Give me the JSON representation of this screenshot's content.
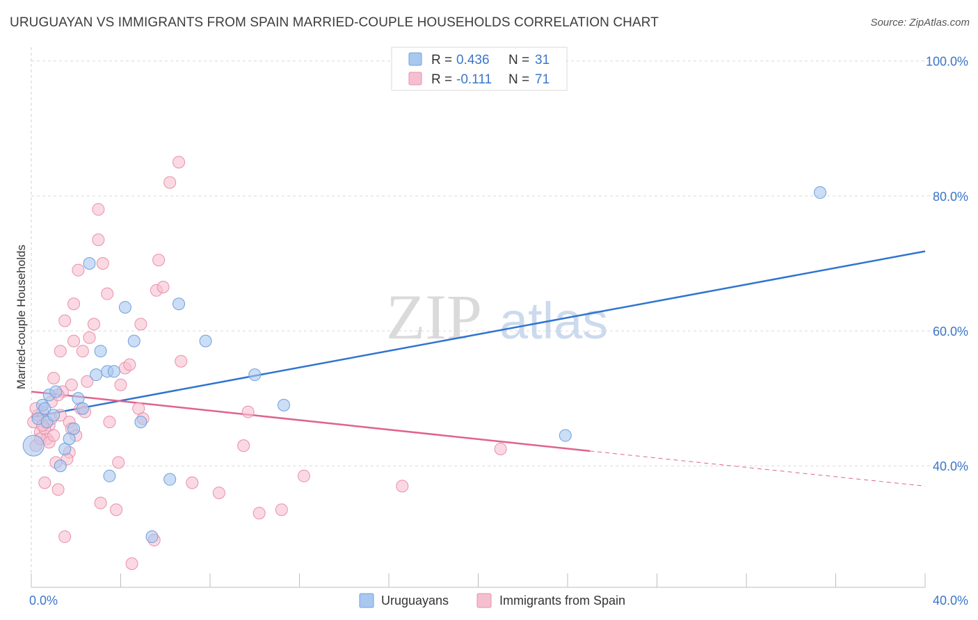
{
  "title": "URUGUAYAN VS IMMIGRANTS FROM SPAIN MARRIED-COUPLE HOUSEHOLDS CORRELATION CHART",
  "source": "Source: ZipAtlas.com",
  "watermark": {
    "zip": "ZIP",
    "atlas": "atlas"
  },
  "colors": {
    "blue_fill": "#a9c8ef",
    "blue_stroke": "#6f9fdc",
    "blue_line": "#2f74d0",
    "pink_fill": "#f6bfd0",
    "pink_stroke": "#e88fab",
    "pink_line": "#e0628f",
    "axis_label": "#3a76c9",
    "grid": "#d9d9d9"
  },
  "legend": {
    "rows": [
      {
        "r_label": "R =",
        "r_value": "0.436",
        "n_label": "N =",
        "n_value": "31"
      },
      {
        "r_label": "R =",
        "r_value": "-0.111",
        "n_label": "N =",
        "n_value": "71"
      }
    ]
  },
  "bottom_legend": [
    "Uruguayans",
    "Immigrants from Spain"
  ],
  "chart_data": {
    "type": "scatter",
    "ylabel": "Married-couple Households",
    "xlim": [
      0,
      40
    ],
    "ylim": [
      22,
      101
    ],
    "x_tick_labels": [
      "0.0%",
      "40.0%"
    ],
    "y_ticks": [
      40,
      60,
      80,
      100
    ],
    "y_tick_labels": [
      "40.0%",
      "60.0%",
      "80.0%",
      "100.0%"
    ],
    "series": [
      {
        "name": "Uruguayans",
        "points": [
          [
            0.1,
            43.0
          ],
          [
            0.3,
            47.0
          ],
          [
            0.5,
            49.0
          ],
          [
            0.6,
            48.5
          ],
          [
            0.7,
            46.5
          ],
          [
            0.8,
            50.5
          ],
          [
            1.0,
            47.5
          ],
          [
            1.1,
            51.0
          ],
          [
            1.3,
            40.0
          ],
          [
            1.5,
            42.5
          ],
          [
            1.7,
            44.0
          ],
          [
            1.9,
            45.5
          ],
          [
            2.1,
            50.0
          ],
          [
            2.3,
            48.5
          ],
          [
            2.6,
            70.0
          ],
          [
            2.9,
            53.5
          ],
          [
            3.1,
            57.0
          ],
          [
            3.4,
            54.0
          ],
          [
            3.5,
            38.5
          ],
          [
            3.7,
            54.0
          ],
          [
            4.2,
            63.5
          ],
          [
            4.6,
            58.5
          ],
          [
            4.9,
            46.5
          ],
          [
            5.4,
            29.5
          ],
          [
            6.2,
            38.0
          ],
          [
            6.6,
            64.0
          ],
          [
            7.8,
            58.5
          ],
          [
            10.0,
            53.5
          ],
          [
            11.3,
            49.0
          ],
          [
            23.9,
            44.5
          ],
          [
            35.3,
            80.5
          ]
        ]
      },
      {
        "name": "Immigrants from Spain",
        "points": [
          [
            0.1,
            46.5
          ],
          [
            0.2,
            43.0
          ],
          [
            0.3,
            47.5
          ],
          [
            0.4,
            45.0
          ],
          [
            0.5,
            48.0
          ],
          [
            0.6,
            37.5
          ],
          [
            0.7,
            44.0
          ],
          [
            0.8,
            46.0
          ],
          [
            0.9,
            47.0
          ],
          [
            1.0,
            53.0
          ],
          [
            1.1,
            40.5
          ],
          [
            1.2,
            36.5
          ],
          [
            1.3,
            57.0
          ],
          [
            1.4,
            51.0
          ],
          [
            1.5,
            61.5
          ],
          [
            1.5,
            29.5
          ],
          [
            1.7,
            46.5
          ],
          [
            1.7,
            42.0
          ],
          [
            1.8,
            45.5
          ],
          [
            1.9,
            64.0
          ],
          [
            1.9,
            58.5
          ],
          [
            2.0,
            44.5
          ],
          [
            2.1,
            69.0
          ],
          [
            2.2,
            48.5
          ],
          [
            2.3,
            57.0
          ],
          [
            2.5,
            52.5
          ],
          [
            2.6,
            59.0
          ],
          [
            2.8,
            61.0
          ],
          [
            3.0,
            78.0
          ],
          [
            3.0,
            73.5
          ],
          [
            3.1,
            34.5
          ],
          [
            3.2,
            70.0
          ],
          [
            3.4,
            65.5
          ],
          [
            3.5,
            46.5
          ],
          [
            3.8,
            33.5
          ],
          [
            3.9,
            40.5
          ],
          [
            4.0,
            52.0
          ],
          [
            4.2,
            54.5
          ],
          [
            4.4,
            55.0
          ],
          [
            4.5,
            25.5
          ],
          [
            4.8,
            48.5
          ],
          [
            4.9,
            61.0
          ],
          [
            5.0,
            47.0
          ],
          [
            5.5,
            29.0
          ],
          [
            5.6,
            66.0
          ],
          [
            5.7,
            70.5
          ],
          [
            5.9,
            66.5
          ],
          [
            6.2,
            82.0
          ],
          [
            6.6,
            85.0
          ],
          [
            6.7,
            55.5
          ],
          [
            7.2,
            37.5
          ],
          [
            8.4,
            36.0
          ],
          [
            9.5,
            43.0
          ],
          [
            9.7,
            48.0
          ],
          [
            10.2,
            33.0
          ],
          [
            11.2,
            33.5
          ],
          [
            12.2,
            38.5
          ],
          [
            16.6,
            37.0
          ],
          [
            21.0,
            42.5
          ],
          [
            0.4,
            44.0
          ],
          [
            0.9,
            49.5
          ],
          [
            1.3,
            47.5
          ],
          [
            0.6,
            45.5
          ],
          [
            1.6,
            41.0
          ],
          [
            2.4,
            48.0
          ],
          [
            0.2,
            48.5
          ],
          [
            0.8,
            43.5
          ],
          [
            1.2,
            50.5
          ],
          [
            1.8,
            52.0
          ],
          [
            0.5,
            46.0
          ],
          [
            1.0,
            44.5
          ]
        ]
      }
    ],
    "trendlines": [
      {
        "series": "Uruguayans",
        "x": [
          0,
          40
        ],
        "y": [
          47.2,
          71.8
        ]
      },
      {
        "series": "Immigrants from Spain",
        "x": [
          0,
          25
        ],
        "y": [
          51.0,
          42.2
        ]
      },
      {
        "series": "Immigrants from Spain",
        "x": [
          25,
          40
        ],
        "y": [
          42.2,
          37.0
        ]
      }
    ]
  }
}
